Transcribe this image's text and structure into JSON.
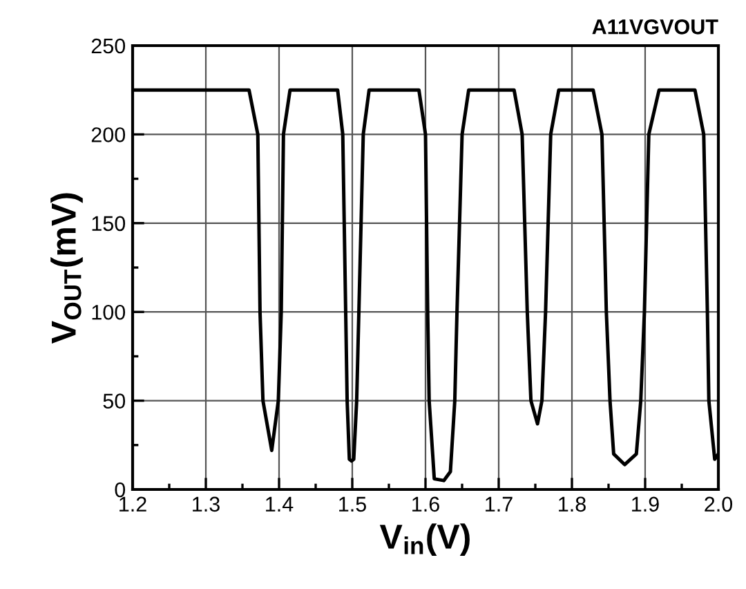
{
  "chart_data": {
    "type": "line",
    "title": "A11VGVOUT",
    "xlabel": "V$_{in}$(V)",
    "ylabel": "V$_{OUT}$(mV)",
    "series": [
      {
        "color": "#000000",
        "x": [
          1.2,
          1.359,
          1.371,
          1.374,
          1.378,
          1.39,
          1.399,
          1.403,
          1.406,
          1.415,
          1.48,
          1.487,
          1.491,
          1.493,
          1.496,
          1.499,
          1.502,
          1.506,
          1.509,
          1.515,
          1.523,
          1.591,
          1.6,
          1.603,
          1.605,
          1.612,
          1.625,
          1.634,
          1.64,
          1.643,
          1.65,
          1.659,
          1.721,
          1.732,
          1.739,
          1.744,
          1.753,
          1.759,
          1.764,
          1.771,
          1.782,
          1.829,
          1.841,
          1.847,
          1.852,
          1.857,
          1.872,
          1.888,
          1.894,
          1.899,
          1.905,
          1.919,
          1.968,
          1.98,
          1.985,
          1.987,
          1.995,
          2.0
        ],
        "values": [
          225,
          225,
          200,
          100,
          50,
          22,
          50,
          100,
          200,
          225,
          225,
          200,
          100,
          50,
          17,
          16,
          17,
          50,
          100,
          200,
          225,
          225,
          200,
          100,
          50,
          6,
          5,
          10,
          50,
          100,
          200,
          225,
          225,
          200,
          100,
          50,
          37,
          50,
          100,
          200,
          225,
          225,
          200,
          100,
          50,
          20,
          14,
          20,
          50,
          100,
          200,
          225,
          225,
          200,
          100,
          50,
          17,
          20
        ]
      }
    ],
    "xlim": [
      1.2,
      2.0
    ],
    "ylim": [
      0,
      250
    ],
    "xticks": [
      1.2,
      1.3,
      1.4,
      1.5,
      1.6,
      1.7,
      1.8,
      1.9,
      {
        "value": 2.0,
        "label": "2.0"
      }
    ],
    "yticks": [
      0,
      50,
      100,
      150,
      200,
      250
    ],
    "grid": true,
    "line_style": "solid",
    "marker": "none"
  }
}
